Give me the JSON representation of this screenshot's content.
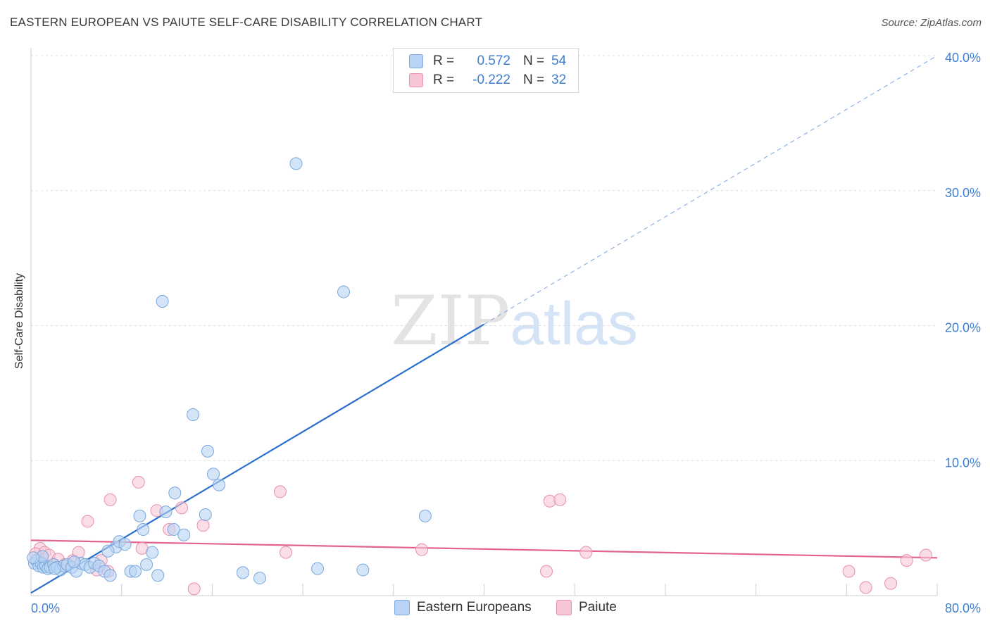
{
  "title": "EASTERN EUROPEAN VS PAIUTE SELF-CARE DISABILITY CORRELATION CHART",
  "source": "Source: ZipAtlas.com",
  "watermark": {
    "zip": "ZIP",
    "atlas": "atlas"
  },
  "legend": {
    "rows": [
      {
        "r_label": "R =",
        "r_value": "0.572",
        "n_label": "N =",
        "n_value": "54"
      },
      {
        "r_label": "R =",
        "r_value": "-0.222",
        "n_label": "N =",
        "n_value": "32"
      }
    ]
  },
  "bottom_legend": [
    "Eastern Europeans",
    "Paiute"
  ],
  "colors": {
    "blue_fill": "#b8d3f3",
    "blue_stroke": "#7aa7dd",
    "blue_line": "#2a6fd0",
    "pink_fill": "#f7c6d6",
    "pink_stroke": "#e690ae",
    "pink_line": "#e2638f",
    "grid": "#dcdcdc",
    "tick_text": "#3f7fd0"
  },
  "chart_data": {
    "type": "scatter",
    "title": "EASTERN EUROPEAN VS PAIUTE SELF-CARE DISABILITY CORRELATION CHART",
    "xlabel": "",
    "ylabel": "Self-Care Disability",
    "xlim": [
      0,
      80
    ],
    "ylim": [
      0,
      40
    ],
    "x_tick_labels": [
      "0.0%",
      "80.0%"
    ],
    "y_ticks": [
      10,
      20,
      30,
      40
    ],
    "y_tick_labels": [
      "10.0%",
      "20.0%",
      "30.0%",
      "40.0%"
    ],
    "series": [
      {
        "name": "Eastern Europeans",
        "r": 0.572,
        "n": 54,
        "trend": {
          "x0": 0,
          "y0": 0.2,
          "x1": 80,
          "y1": 40.0,
          "solid_until_x": 40
        },
        "points": [
          [
            0.3,
            2.4
          ],
          [
            0.5,
            2.6
          ],
          [
            0.7,
            2.2
          ],
          [
            0.9,
            2.4
          ],
          [
            1.1,
            2.1
          ],
          [
            1.3,
            2.2
          ],
          [
            1.5,
            2.0
          ],
          [
            1.7,
            2.1
          ],
          [
            2.0,
            2.3
          ],
          [
            2.3,
            2.1
          ],
          [
            2.6,
            1.9
          ],
          [
            2.9,
            2.2
          ],
          [
            3.2,
            2.3
          ],
          [
            3.6,
            2.1
          ],
          [
            4.0,
            1.8
          ],
          [
            4.4,
            2.4
          ],
          [
            4.8,
            2.3
          ],
          [
            5.2,
            2.1
          ],
          [
            5.6,
            2.4
          ],
          [
            6.0,
            2.2
          ],
          [
            6.5,
            1.8
          ],
          [
            7.0,
            1.5
          ],
          [
            7.5,
            3.6
          ],
          [
            7.8,
            4.0
          ],
          [
            8.3,
            3.8
          ],
          [
            8.8,
            1.8
          ],
          [
            9.2,
            1.8
          ],
          [
            9.6,
            5.9
          ],
          [
            10.2,
            2.3
          ],
          [
            10.7,
            3.2
          ],
          [
            11.6,
            21.8
          ],
          [
            11.9,
            6.2
          ],
          [
            12.6,
            4.9
          ],
          [
            12.7,
            7.6
          ],
          [
            13.5,
            4.5
          ],
          [
            14.3,
            13.4
          ],
          [
            15.4,
            6.0
          ],
          [
            15.6,
            10.7
          ],
          [
            16.1,
            9.0
          ],
          [
            16.6,
            8.2
          ],
          [
            18.7,
            1.7
          ],
          [
            20.2,
            1.3
          ],
          [
            23.4,
            32.0
          ],
          [
            25.3,
            2.0
          ],
          [
            27.6,
            22.5
          ],
          [
            29.3,
            1.9
          ],
          [
            34.8,
            5.9
          ],
          [
            1.0,
            2.9
          ],
          [
            3.8,
            2.5
          ],
          [
            9.9,
            4.9
          ],
          [
            11.2,
            1.5
          ],
          [
            6.8,
            3.3
          ],
          [
            2.1,
            2.0
          ],
          [
            0.2,
            2.8
          ]
        ]
      },
      {
        "name": "Paiute",
        "r": -0.222,
        "n": 32,
        "trend": {
          "x0": 0,
          "y0": 4.1,
          "x1": 80,
          "y1": 2.8
        },
        "points": [
          [
            0.8,
            3.5
          ],
          [
            1.2,
            3.2
          ],
          [
            1.6,
            3.0
          ],
          [
            2.4,
            2.7
          ],
          [
            3.0,
            2.3
          ],
          [
            3.7,
            2.6
          ],
          [
            4.2,
            3.2
          ],
          [
            5.0,
            5.5
          ],
          [
            5.8,
            1.9
          ],
          [
            6.2,
            2.6
          ],
          [
            6.8,
            1.8
          ],
          [
            7.0,
            7.1
          ],
          [
            9.5,
            8.4
          ],
          [
            9.8,
            3.5
          ],
          [
            11.1,
            6.3
          ],
          [
            12.2,
            4.9
          ],
          [
            13.3,
            6.5
          ],
          [
            14.4,
            0.5
          ],
          [
            15.2,
            5.2
          ],
          [
            22.0,
            7.7
          ],
          [
            22.5,
            3.2
          ],
          [
            34.5,
            3.4
          ],
          [
            45.5,
            1.8
          ],
          [
            45.8,
            7.0
          ],
          [
            46.7,
            7.1
          ],
          [
            49.0,
            3.2
          ],
          [
            72.2,
            1.8
          ],
          [
            73.7,
            0.6
          ],
          [
            75.9,
            0.9
          ],
          [
            77.3,
            2.6
          ],
          [
            79.0,
            3.0
          ],
          [
            0.4,
            3.1
          ]
        ]
      }
    ]
  }
}
